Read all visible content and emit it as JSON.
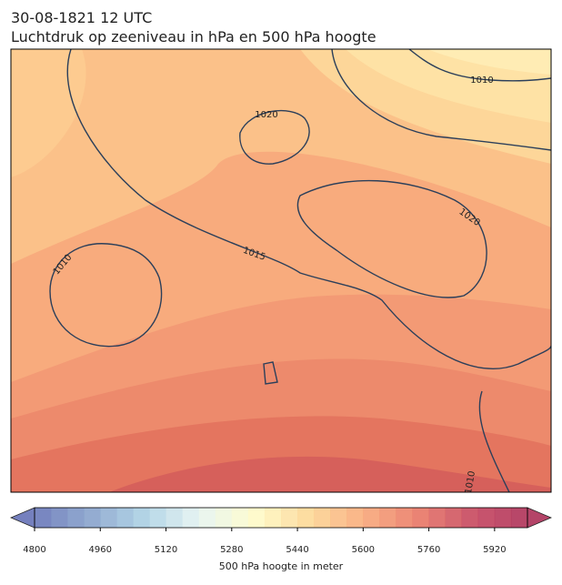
{
  "title": [
    "30-08-1821 12 UTC",
    "Luchtdruk op zeeniveau in hPa en 500 hPa hoogte"
  ],
  "map": {
    "contour_labels": [
      "1020",
      "1010",
      "1020",
      "1015",
      "1010",
      "1010"
    ]
  },
  "colorbar": {
    "label": "500 hPa hoogte in meter",
    "xlim": [
      4800,
      6000
    ],
    "xticks": [
      4800,
      4960,
      5120,
      5280,
      5440,
      5600,
      5760,
      5920
    ],
    "step": 40,
    "colors": [
      "#5d6bb3",
      "#7f9cc8",
      "#a6cde2",
      "#e3f3f0",
      "#fefbc6",
      "#fdd58e",
      "#f8a472",
      "#e8705c",
      "#c23b55",
      "#a8244e"
    ]
  }
}
